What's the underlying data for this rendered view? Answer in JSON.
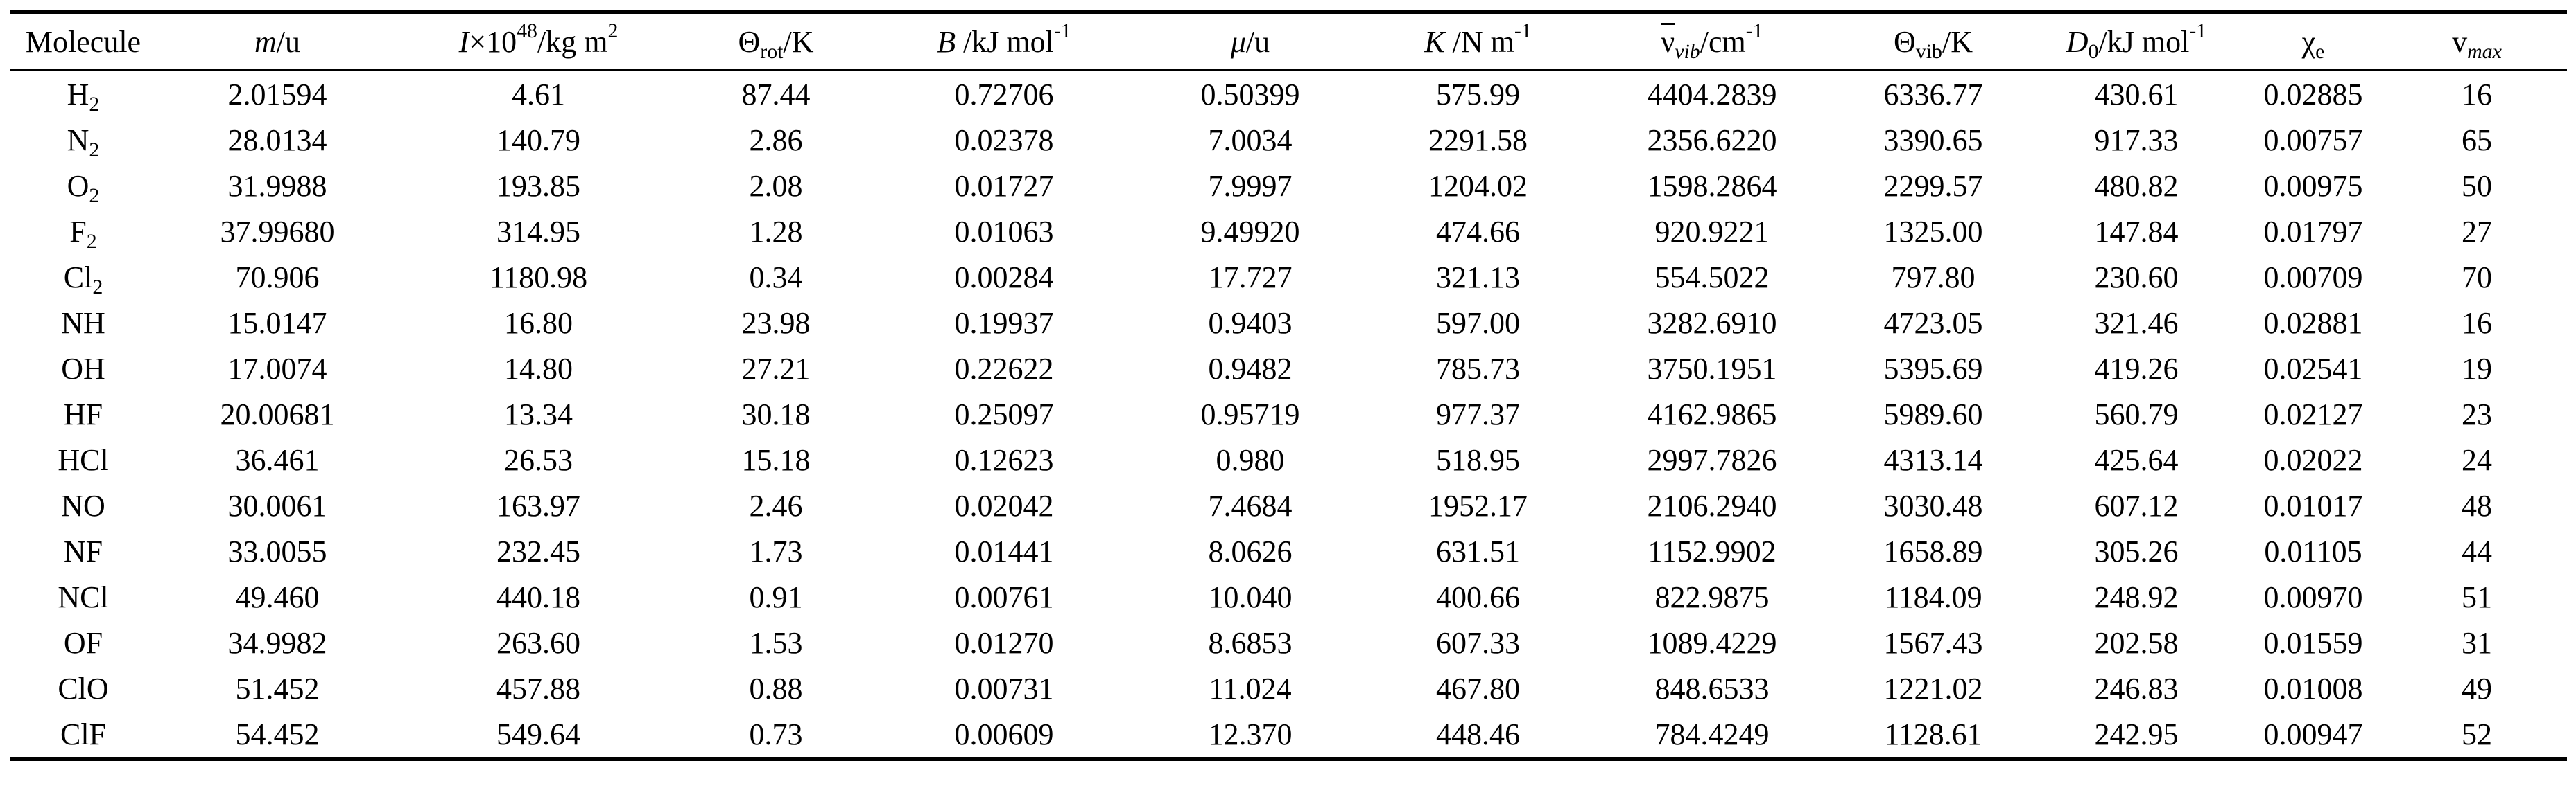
{
  "table": {
    "headers": {
      "molecule": "Molecule",
      "mass": {
        "symbol": "m",
        "unit": "/u"
      },
      "inertia": {
        "symbol": "I",
        "mult": "×10",
        "exp": "48",
        "unit": "/kg m",
        "unit_exp": "2"
      },
      "theta_rot": {
        "symbol": "Θ",
        "sub": "rot",
        "unit": "/K"
      },
      "b": {
        "symbol": "B",
        "unit": " /kJ mol",
        "unit_exp": "-1"
      },
      "mu": {
        "symbol": "μ",
        "unit": "/u"
      },
      "k": {
        "symbol": "K",
        "unit": " /N m",
        "unit_exp": "-1"
      },
      "nu_vib": {
        "symbol": "ν",
        "sub": "vib",
        "unit": "/cm",
        "unit_exp": "-1"
      },
      "theta_vib": {
        "symbol": "Θ",
        "sub": "vib",
        "unit": "/K"
      },
      "d0": {
        "symbol": "D",
        "sub": "0",
        "unit": "/kJ mol",
        "unit_exp": "-1"
      },
      "chi_e": {
        "symbol": "χ",
        "sub": "e"
      },
      "v_max": {
        "symbol": "v",
        "sub": "max"
      }
    },
    "rows": [
      {
        "base": "H",
        "sub": "2",
        "m": "2.01594",
        "I": "4.61",
        "theta_rot": "87.44",
        "B": "0.72706",
        "mu": "0.50399",
        "K": "575.99",
        "nu": "4404.2839",
        "theta_vib": "6336.77",
        "D0": "430.61",
        "chi": "0.02885",
        "vmax": "16"
      },
      {
        "base": "N",
        "sub": "2",
        "m": "28.0134",
        "I": "140.79",
        "theta_rot": "2.86",
        "B": "0.02378",
        "mu": "7.0034",
        "K": "2291.58",
        "nu": "2356.6220",
        "theta_vib": "3390.65",
        "D0": "917.33",
        "chi": "0.00757",
        "vmax": "65"
      },
      {
        "base": "O",
        "sub": "2",
        "m": "31.9988",
        "I": "193.85",
        "theta_rot": "2.08",
        "B": "0.01727",
        "mu": "7.9997",
        "K": "1204.02",
        "nu": "1598.2864",
        "theta_vib": "2299.57",
        "D0": "480.82",
        "chi": "0.00975",
        "vmax": "50"
      },
      {
        "base": "F",
        "sub": "2",
        "m": "37.99680",
        "I": "314.95",
        "theta_rot": "1.28",
        "B": "0.01063",
        "mu": "9.49920",
        "K": "474.66",
        "nu": "920.9221",
        "theta_vib": "1325.00",
        "D0": "147.84",
        "chi": "0.01797",
        "vmax": "27"
      },
      {
        "base": "Cl",
        "sub": "2",
        "m": "70.906",
        "I": "1180.98",
        "theta_rot": "0.34",
        "B": "0.00284",
        "mu": "17.727",
        "K": "321.13",
        "nu": "554.5022",
        "theta_vib": "797.80",
        "D0": "230.60",
        "chi": "0.00709",
        "vmax": "70"
      },
      {
        "base": "NH",
        "sub": "",
        "m": "15.0147",
        "I": "16.80",
        "theta_rot": "23.98",
        "B": "0.19937",
        "mu": "0.9403",
        "K": "597.00",
        "nu": "3282.6910",
        "theta_vib": "4723.05",
        "D0": "321.46",
        "chi": "0.02881",
        "vmax": "16"
      },
      {
        "base": "OH",
        "sub": "",
        "m": "17.0074",
        "I": "14.80",
        "theta_rot": "27.21",
        "B": "0.22622",
        "mu": "0.9482",
        "K": "785.73",
        "nu": "3750.1951",
        "theta_vib": "5395.69",
        "D0": "419.26",
        "chi": "0.02541",
        "vmax": "19"
      },
      {
        "base": "HF",
        "sub": "",
        "m": "20.00681",
        "I": "13.34",
        "theta_rot": "30.18",
        "B": "0.25097",
        "mu": "0.95719",
        "K": "977.37",
        "nu": "4162.9865",
        "theta_vib": "5989.60",
        "D0": "560.79",
        "chi": "0.02127",
        "vmax": "23"
      },
      {
        "base": "HCl",
        "sub": "",
        "m": "36.461",
        "I": "26.53",
        "theta_rot": "15.18",
        "B": "0.12623",
        "mu": "0.980",
        "K": "518.95",
        "nu": "2997.7826",
        "theta_vib": "4313.14",
        "D0": "425.64",
        "chi": "0.02022",
        "vmax": "24"
      },
      {
        "base": "NO",
        "sub": "",
        "m": "30.0061",
        "I": "163.97",
        "theta_rot": "2.46",
        "B": "0.02042",
        "mu": "7.4684",
        "K": "1952.17",
        "nu": "2106.2940",
        "theta_vib": "3030.48",
        "D0": "607.12",
        "chi": "0.01017",
        "vmax": "48"
      },
      {
        "base": "NF",
        "sub": "",
        "m": "33.0055",
        "I": "232.45",
        "theta_rot": "1.73",
        "B": "0.01441",
        "mu": "8.0626",
        "K": "631.51",
        "nu": "1152.9902",
        "theta_vib": "1658.89",
        "D0": "305.26",
        "chi": "0.01105",
        "vmax": "44"
      },
      {
        "base": "NCl",
        "sub": "",
        "m": "49.460",
        "I": "440.18",
        "theta_rot": "0.91",
        "B": "0.00761",
        "mu": "10.040",
        "K": "400.66",
        "nu": "822.9875",
        "theta_vib": "1184.09",
        "D0": "248.92",
        "chi": "0.00970",
        "vmax": "51"
      },
      {
        "base": "OF",
        "sub": "",
        "m": "34.9982",
        "I": "263.60",
        "theta_rot": "1.53",
        "B": "0.01270",
        "mu": "8.6853",
        "K": "607.33",
        "nu": "1089.4229",
        "theta_vib": "1567.43",
        "D0": "202.58",
        "chi": "0.01559",
        "vmax": "31"
      },
      {
        "base": "ClO",
        "sub": "",
        "m": "51.452",
        "I": "457.88",
        "theta_rot": "0.88",
        "B": "0.00731",
        "mu": "11.024",
        "K": "467.80",
        "nu": "848.6533",
        "theta_vib": "1221.02",
        "D0": "246.83",
        "chi": "0.01008",
        "vmax": "49"
      },
      {
        "base": "ClF",
        "sub": "",
        "m": "54.452",
        "I": "549.64",
        "theta_rot": "0.73",
        "B": "0.00609",
        "mu": "12.370",
        "K": "448.46",
        "nu": "784.4249",
        "theta_vib": "1128.61",
        "D0": "242.95",
        "chi": "0.00947",
        "vmax": "52"
      }
    ]
  }
}
